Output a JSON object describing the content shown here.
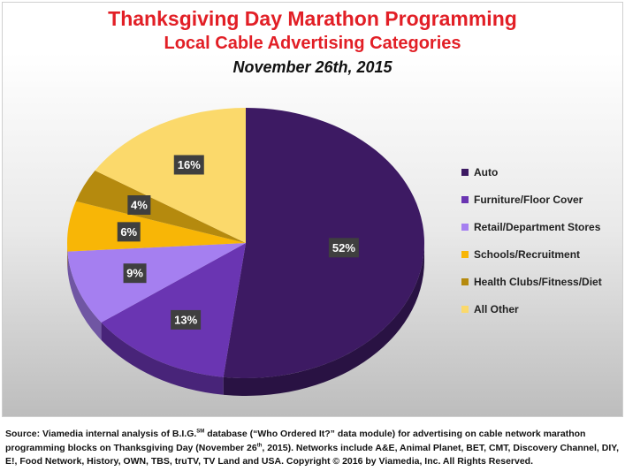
{
  "title": {
    "line1": "Thanksgiving Day Marathon Programming",
    "line2": "Local Cable Advertising Categories",
    "line3": "November 26th, 2015"
  },
  "chart_data": {
    "type": "pie",
    "title": "Thanksgiving Day Marathon Programming",
    "subtitle": "Local Cable Advertising Categories",
    "date": "November 26th, 2015",
    "legend_position": "right",
    "slices": [
      {
        "label": "Auto",
        "value": 52,
        "display": "52%",
        "color": "#3d1a63"
      },
      {
        "label": "Furniture/Floor Cover",
        "value": 13,
        "display": "13%",
        "color": "#6a35b2"
      },
      {
        "label": "Retail/Department Stores",
        "value": 9,
        "display": "9%",
        "color": "#a57ff0"
      },
      {
        "label": "Schools/Recruitment",
        "value": 6,
        "display": "6%",
        "color": "#f8b606"
      },
      {
        "label": "Health Clubs/Fitness/Diet",
        "value": 4,
        "display": "4%",
        "color": "#b58a0e"
      },
      {
        "label": "All Other",
        "value": 16,
        "display": "16%",
        "color": "#fbd96b"
      }
    ]
  },
  "source": {
    "part1": "Source: Viamedia internal analysis of B.I.G.",
    "sm": "SM",
    "part2": " database (“Who Ordered It?” data module) for advertising on cable network marathon programming blocks on Thanksgiving Day (November 26",
    "th": "th",
    "part3": ", 2015). Networks include A&E, Animal Planet, BET, CMT, Discovery Channel, DIY, E!, Food Network, History, OWN, TBS, truTV, TV Land and USA. Copyright © 2016 by Viamedia, Inc. All Rights Reserved."
  }
}
